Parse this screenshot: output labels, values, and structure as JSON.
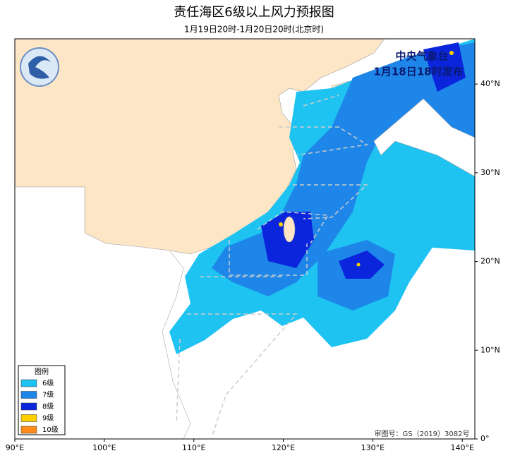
{
  "header": {
    "title": "责任海区6级以上风力预报图",
    "subtitle": "1月19日20时-1月20日20时(北京时)"
  },
  "issuer": {
    "agency": "中央气象台",
    "issued": "1月18日18时发布"
  },
  "approval": "审图号：GS（2019）3082号",
  "map": {
    "lon_range": [
      90,
      141.4
    ],
    "lat_range": [
      0,
      45.1
    ],
    "lon_ticks": [
      {
        "value": 90,
        "label": "90°E"
      },
      {
        "value": 100,
        "label": "100°E"
      },
      {
        "value": 110,
        "label": "110°E"
      },
      {
        "value": 120,
        "label": "120°E"
      },
      {
        "value": 130,
        "label": "130°E"
      },
      {
        "value": 140,
        "label": "140°E"
      }
    ],
    "lat_ticks": [
      {
        "value": 0,
        "label": "0°"
      },
      {
        "value": 10,
        "label": "10°N"
      },
      {
        "value": 20,
        "label": "20°N"
      },
      {
        "value": 30,
        "label": "30°N"
      },
      {
        "value": 40,
        "label": "40°N"
      }
    ]
  },
  "legend": {
    "title": "图例",
    "items": [
      {
        "name": "6级",
        "color": "#1ec3f2"
      },
      {
        "name": "7级",
        "color": "#1e86e8"
      },
      {
        "name": "8级",
        "color": "#0b25dc"
      },
      {
        "name": "9级",
        "color": "#ffd000"
      },
      {
        "name": "10级",
        "color": "#ff8c1a"
      }
    ]
  }
}
